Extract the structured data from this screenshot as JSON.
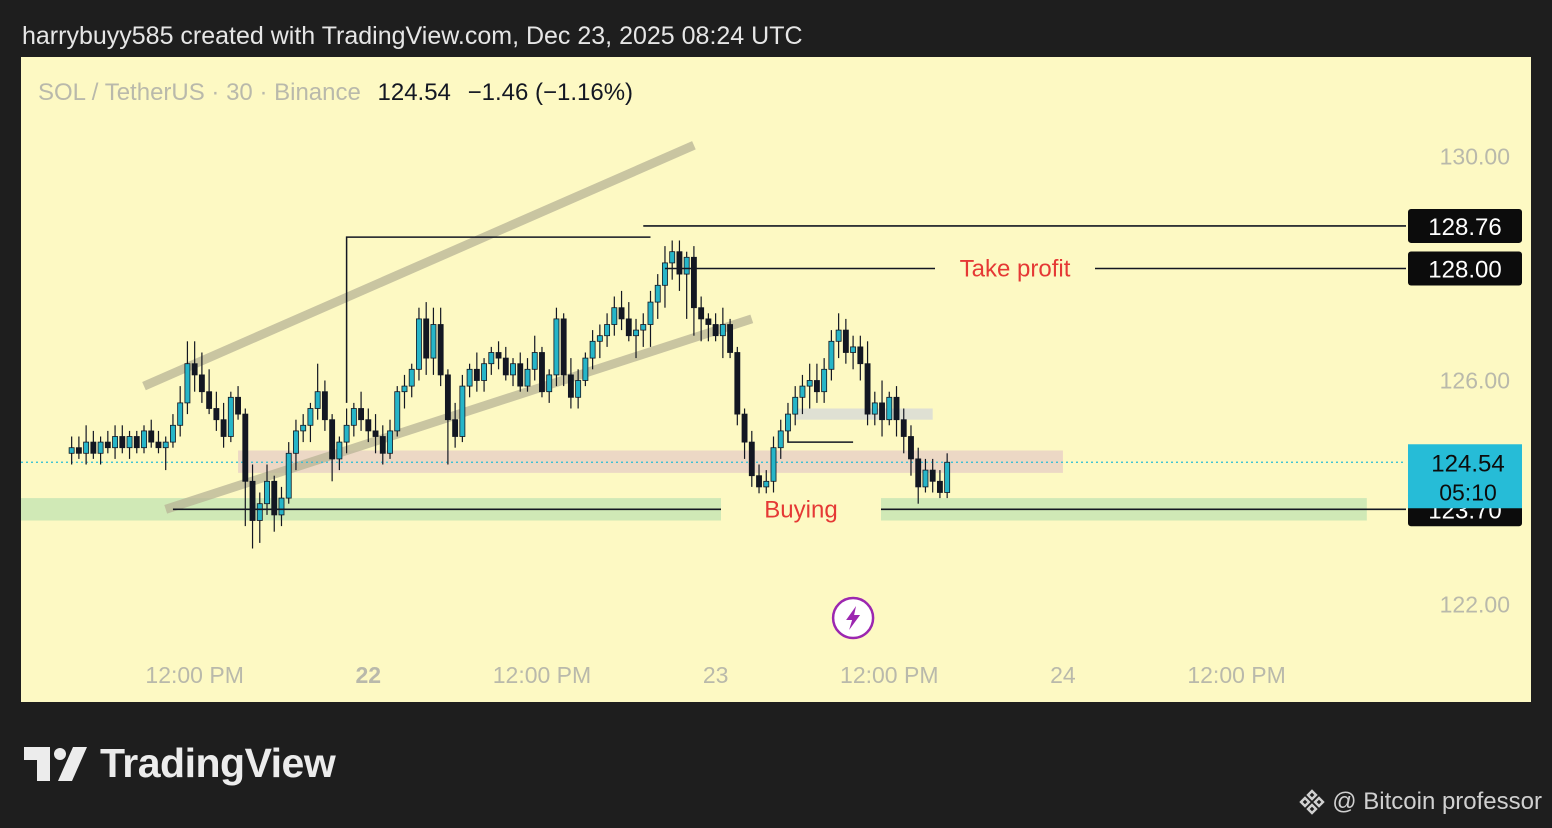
{
  "header": {
    "attribution": "harrybuyy585 created with TradingView.com, Dec 23, 2025 08:24 UTC"
  },
  "legend": {
    "symbol": "SOL / TetherUS · 30 · Binance",
    "price": "124.54",
    "change": "−1.46 (−1.16%)"
  },
  "brand": {
    "name": "TradingView",
    "logo_icon": "tradingview-logo-icon"
  },
  "credit": {
    "text": "@ Bitcoin professor",
    "icon": "binance-diamond-icon"
  },
  "colors": {
    "background": "#fdf9c3",
    "bull": "#26b5c8",
    "bear": "#131722",
    "price_tag": "#26bcd7",
    "label_red": "#e53935",
    "buy_zone": "#c8e6b4",
    "resistance_zone": "#e9d2c6",
    "grey_zone": "#d9dcd6",
    "channel": "#b8b496"
  },
  "chart_data": {
    "type": "candlestick",
    "symbol": "SOL / TetherUS",
    "interval": "30",
    "exchange": "Binance",
    "ylim": [
      120.6,
      131.9
    ],
    "y_ticks": [
      {
        "value": 130,
        "label": "130.00"
      },
      {
        "value": 126,
        "label": "126.00"
      },
      {
        "value": 122,
        "label": "122.00"
      }
    ],
    "x_range": [
      "2025-12-21T00:00",
      "2025-12-24T23:30"
    ],
    "x_ticks": [
      {
        "t": "2025-12-21T12:00",
        "label": "12:00 PM",
        "bold": false
      },
      {
        "t": "2025-12-22T00:00",
        "label": "22",
        "bold": true
      },
      {
        "t": "2025-12-22T12:00",
        "label": "12:00 PM",
        "bold": false
      },
      {
        "t": "2025-12-23T00:00",
        "label": "23",
        "bold": false
      },
      {
        "t": "2025-12-23T12:00",
        "label": "12:00 PM",
        "bold": false
      },
      {
        "t": "2025-12-24T00:00",
        "label": "24",
        "bold": false
      },
      {
        "t": "2025-12-24T12:00",
        "label": "12:00 PM",
        "bold": false
      }
    ],
    "first_candle_time": "2025-12-21T03:30",
    "candle_interval_minutes": 30,
    "candles": [
      [
        124.7,
        125.0,
        124.5,
        124.8
      ],
      [
        124.8,
        125.0,
        124.6,
        124.7
      ],
      [
        124.7,
        125.2,
        124.5,
        124.9
      ],
      [
        124.9,
        125.1,
        124.6,
        124.7
      ],
      [
        124.7,
        125.0,
        124.5,
        124.9
      ],
      [
        124.9,
        125.1,
        124.7,
        124.8
      ],
      [
        124.8,
        125.2,
        124.6,
        125.0
      ],
      [
        125.0,
        125.2,
        124.7,
        124.8
      ],
      [
        124.8,
        125.1,
        124.6,
        125.0
      ],
      [
        125.0,
        125.1,
        124.7,
        124.8
      ],
      [
        124.8,
        125.2,
        124.7,
        125.1
      ],
      [
        125.1,
        125.3,
        124.8,
        124.9
      ],
      [
        124.9,
        125.1,
        124.7,
        124.8
      ],
      [
        124.8,
        125.0,
        124.4,
        124.9
      ],
      [
        124.9,
        125.4,
        124.8,
        125.2
      ],
      [
        125.2,
        125.9,
        125.0,
        125.6
      ],
      [
        125.6,
        126.7,
        125.4,
        126.3
      ],
      [
        126.3,
        126.7,
        125.8,
        126.1
      ],
      [
        126.1,
        126.5,
        125.6,
        125.8
      ],
      [
        125.8,
        126.2,
        125.4,
        125.5
      ],
      [
        125.5,
        125.8,
        125.1,
        125.3
      ],
      [
        125.3,
        125.6,
        124.8,
        125.0
      ],
      [
        125.0,
        125.8,
        124.9,
        125.7
      ],
      [
        125.7,
        125.9,
        125.3,
        125.4
      ],
      [
        125.4,
        125.5,
        123.4,
        124.2
      ],
      [
        124.2,
        124.5,
        123.0,
        123.5
      ],
      [
        123.5,
        124.0,
        123.1,
        123.8
      ],
      [
        123.8,
        124.5,
        123.6,
        124.2
      ],
      [
        124.2,
        124.3,
        123.3,
        123.6
      ],
      [
        123.6,
        124.1,
        123.4,
        123.9
      ],
      [
        123.9,
        124.9,
        123.8,
        124.7
      ],
      [
        124.7,
        125.3,
        124.4,
        125.1
      ],
      [
        125.1,
        125.4,
        124.9,
        125.2
      ],
      [
        125.2,
        125.6,
        124.9,
        125.5
      ],
      [
        125.5,
        126.3,
        125.3,
        125.8
      ],
      [
        125.8,
        126.0,
        125.1,
        125.3
      ],
      [
        125.3,
        125.4,
        124.2,
        124.6
      ],
      [
        124.6,
        125.0,
        124.4,
        124.9
      ],
      [
        124.9,
        125.5,
        124.7,
        125.2
      ],
      [
        125.2,
        125.6,
        125.0,
        125.5
      ],
      [
        125.5,
        125.8,
        125.1,
        125.3
      ],
      [
        125.3,
        125.5,
        124.9,
        125.1
      ],
      [
        125.1,
        125.4,
        124.7,
        125.0
      ],
      [
        125.0,
        125.2,
        124.5,
        124.7
      ],
      [
        124.7,
        125.3,
        124.6,
        125.1
      ],
      [
        125.1,
        125.9,
        125.0,
        125.8
      ],
      [
        125.8,
        126.1,
        125.5,
        125.9
      ],
      [
        125.9,
        126.3,
        125.7,
        126.2
      ],
      [
        126.2,
        127.3,
        126.0,
        127.1
      ],
      [
        127.1,
        127.4,
        126.1,
        126.4
      ],
      [
        126.4,
        127.3,
        126.1,
        127.0
      ],
      [
        127.0,
        127.3,
        125.9,
        126.1
      ],
      [
        126.1,
        126.2,
        124.5,
        125.3
      ],
      [
        125.3,
        125.6,
        124.8,
        125.0
      ],
      [
        125.0,
        126.1,
        124.9,
        125.9
      ],
      [
        125.9,
        126.3,
        125.7,
        126.2
      ],
      [
        126.2,
        126.5,
        125.8,
        126.0
      ],
      [
        126.0,
        126.4,
        125.8,
        126.3
      ],
      [
        126.3,
        126.6,
        126.1,
        126.5
      ],
      [
        126.5,
        126.7,
        126.2,
        126.4
      ],
      [
        126.4,
        126.6,
        126.0,
        126.1
      ],
      [
        126.1,
        126.4,
        125.9,
        126.3
      ],
      [
        126.3,
        126.5,
        125.8,
        125.9
      ],
      [
        125.9,
        126.4,
        125.8,
        126.2
      ],
      [
        126.2,
        126.8,
        126.0,
        126.5
      ],
      [
        126.5,
        126.6,
        125.7,
        125.8
      ],
      [
        125.8,
        126.2,
        125.6,
        126.1
      ],
      [
        126.1,
        127.3,
        125.9,
        127.1
      ],
      [
        127.1,
        127.2,
        125.9,
        126.1
      ],
      [
        126.1,
        126.4,
        125.5,
        125.7
      ],
      [
        125.7,
        126.2,
        125.5,
        126.0
      ],
      [
        126.0,
        126.5,
        125.9,
        126.4
      ],
      [
        126.4,
        126.9,
        126.2,
        126.7
      ],
      [
        126.7,
        127.0,
        126.4,
        126.8
      ],
      [
        126.8,
        127.2,
        126.6,
        127.0
      ],
      [
        127.0,
        127.5,
        126.8,
        127.3
      ],
      [
        127.3,
        127.6,
        126.9,
        127.1
      ],
      [
        127.1,
        127.4,
        126.7,
        126.8
      ],
      [
        126.8,
        127.1,
        126.4,
        126.9
      ],
      [
        126.9,
        127.2,
        126.6,
        127.0
      ],
      [
        127.0,
        127.6,
        126.6,
        127.4
      ],
      [
        127.4,
        127.9,
        127.1,
        127.7
      ],
      [
        127.7,
        128.4,
        127.3,
        128.1
      ],
      [
        128.1,
        128.5,
        127.8,
        128.3
      ],
      [
        128.3,
        128.5,
        127.6,
        127.9
      ],
      [
        127.9,
        128.3,
        127.1,
        128.2
      ],
      [
        128.2,
        128.4,
        126.8,
        127.3
      ],
      [
        127.3,
        127.5,
        126.7,
        127.1
      ],
      [
        127.1,
        127.2,
        126.7,
        127.0
      ],
      [
        127.0,
        127.2,
        126.7,
        126.8
      ],
      [
        126.8,
        127.3,
        126.4,
        127.0
      ],
      [
        127.0,
        127.1,
        126.4,
        126.5
      ],
      [
        126.5,
        126.6,
        125.2,
        125.4
      ],
      [
        125.4,
        125.5,
        124.6,
        124.9
      ],
      [
        124.9,
        125.1,
        124.1,
        124.3
      ],
      [
        124.3,
        124.5,
        123.9,
        124.1
      ],
      [
        124.1,
        124.4,
        123.9,
        124.2
      ],
      [
        124.2,
        125.0,
        124.0,
        124.8
      ],
      [
        124.8,
        125.3,
        124.6,
        125.1
      ],
      [
        125.1,
        125.6,
        124.9,
        125.4
      ],
      [
        125.4,
        125.9,
        125.2,
        125.7
      ],
      [
        125.7,
        126.1,
        125.4,
        125.9
      ],
      [
        125.9,
        126.3,
        125.5,
        126.0
      ],
      [
        126.0,
        126.3,
        125.6,
        125.8
      ],
      [
        125.8,
        126.4,
        125.6,
        126.2
      ],
      [
        126.2,
        126.9,
        126.0,
        126.7
      ],
      [
        126.7,
        127.2,
        126.4,
        126.9
      ],
      [
        126.9,
        127.1,
        126.3,
        126.5
      ],
      [
        126.5,
        126.8,
        126.2,
        126.6
      ],
      [
        126.6,
        126.8,
        126.0,
        126.3
      ],
      [
        126.3,
        126.7,
        125.2,
        125.4
      ],
      [
        125.4,
        125.8,
        125.2,
        125.6
      ],
      [
        125.6,
        126.0,
        125.0,
        125.3
      ],
      [
        125.3,
        125.8,
        125.2,
        125.7
      ],
      [
        125.7,
        125.9,
        125.0,
        125.3
      ],
      [
        125.3,
        125.5,
        124.7,
        125.0
      ],
      [
        125.0,
        125.2,
        124.3,
        124.6
      ],
      [
        124.6,
        124.8,
        123.8,
        124.1
      ],
      [
        124.1,
        124.6,
        124.0,
        124.4
      ],
      [
        124.4,
        124.6,
        124.0,
        124.2
      ],
      [
        124.2,
        124.4,
        123.9,
        124.0
      ],
      [
        124.0,
        124.7,
        123.9,
        124.54
      ]
    ],
    "zones": [
      {
        "name": "buy-zone",
        "from": 123.5,
        "to": 123.9,
        "t_start": "2025-12-21T00:00",
        "t_end": "2025-12-24T21:00"
      },
      {
        "name": "resistance-zone",
        "from": 124.35,
        "to": 124.75,
        "t_start": "2025-12-21T15:00",
        "t_end": "2025-12-24T00:00"
      },
      {
        "name": "grey-zone",
        "from": 125.3,
        "to": 125.5,
        "t_start": "2025-12-23T05:30",
        "t_end": "2025-12-23T15:00"
      }
    ],
    "channel": {
      "upper": {
        "start": [
          "2025-12-21T08:30",
          125.9
        ],
        "end": [
          "2025-12-22T22:30",
          130.2
        ]
      },
      "lower": {
        "start": [
          "2025-12-21T10:00",
          123.7
        ],
        "end": [
          "2025-12-23T02:30",
          127.1
        ]
      }
    },
    "levels": [
      {
        "name": "take-profit-line",
        "price": 128.0,
        "label": "Take profit",
        "t_start": "2025-12-22T20:30",
        "tag": "128.00"
      },
      {
        "name": "buying-line",
        "price": 123.7,
        "label": "Buying",
        "t_start": "2025-12-21T10:30",
        "tag": "123.70"
      },
      {
        "name": "high-line",
        "price": 128.76,
        "label": "",
        "t_start": "2025-12-22T19:00",
        "tag": "128.76"
      }
    ],
    "current_price": {
      "value": 124.54,
      "label": "124.54",
      "countdown": "05:10"
    },
    "annotations": {
      "range_box": {
        "t_start": "2025-12-21T22:30",
        "t_end": "2025-12-22T19:30",
        "top": 128.56,
        "bottom": 125.6
      },
      "break_bracket": {
        "t_start": "2025-12-23T05:00",
        "t_end": "2025-12-23T07:00",
        "top": 125.4,
        "bottom": 124.9,
        "t_extend": "2025-12-23T09:30"
      }
    },
    "event_marker": {
      "t": "2025-12-23T09:30",
      "icon": "lightning-bolt-icon"
    }
  }
}
